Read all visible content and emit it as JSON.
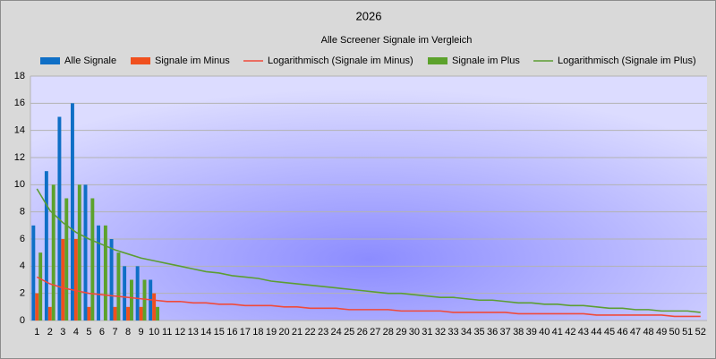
{
  "chart_data": {
    "type": "bar",
    "title": "2026",
    "subtitle": "Alle Screener Signale im Vergleich",
    "categories": [
      1,
      2,
      3,
      4,
      5,
      6,
      7,
      8,
      9,
      10,
      11,
      12,
      13,
      14,
      15,
      16,
      17,
      18,
      19,
      20,
      21,
      22,
      23,
      24,
      25,
      26,
      27,
      28,
      29,
      30,
      31,
      32,
      33,
      34,
      35,
      36,
      37,
      38,
      39,
      40,
      41,
      42,
      43,
      44,
      45,
      46,
      47,
      48,
      49,
      50,
      51,
      52
    ],
    "ylim": [
      0,
      18
    ],
    "yticks": [
      0,
      2,
      4,
      6,
      8,
      10,
      12,
      14,
      16,
      18
    ],
    "grid": true,
    "series": [
      {
        "name": "Alle Signale",
        "type": "bar",
        "color": "#0f6fc6",
        "values": [
          7,
          11,
          15,
          16,
          10,
          7,
          6,
          4,
          4,
          3,
          null,
          null,
          null,
          null,
          null,
          null,
          null,
          null,
          null,
          null,
          null,
          null,
          null,
          null,
          null,
          null,
          null,
          null,
          null,
          null,
          null,
          null,
          null,
          null,
          null,
          null,
          null,
          null,
          null,
          null,
          null,
          null,
          null,
          null,
          null,
          null,
          null,
          null,
          null,
          null,
          null,
          null
        ]
      },
      {
        "name": "Signale im Minus",
        "type": "bar",
        "color": "#f0501e",
        "values": [
          2,
          1,
          6,
          6,
          1,
          0,
          1,
          1,
          1,
          2,
          null,
          null,
          null,
          null,
          null,
          null,
          null,
          null,
          null,
          null,
          null,
          null,
          null,
          null,
          null,
          null,
          null,
          null,
          null,
          null,
          null,
          null,
          null,
          null,
          null,
          null,
          null,
          null,
          null,
          null,
          null,
          null,
          null,
          null,
          null,
          null,
          null,
          null,
          null,
          null,
          null,
          null
        ]
      },
      {
        "name": "Logarithmisch (Signale im Minus)",
        "type": "line",
        "color": "#f04a3a",
        "values": [
          3.2,
          2.7,
          2.4,
          2.2,
          2.0,
          1.9,
          1.8,
          1.7,
          1.6,
          1.5,
          1.4,
          1.4,
          1.3,
          1.3,
          1.2,
          1.2,
          1.1,
          1.1,
          1.1,
          1.0,
          1.0,
          0.9,
          0.9,
          0.9,
          0.8,
          0.8,
          0.8,
          0.8,
          0.7,
          0.7,
          0.7,
          0.7,
          0.6,
          0.6,
          0.6,
          0.6,
          0.6,
          0.5,
          0.5,
          0.5,
          0.5,
          0.5,
          0.5,
          0.4,
          0.4,
          0.4,
          0.4,
          0.4,
          0.4,
          0.3,
          0.3,
          0.3
        ]
      },
      {
        "name": "Signale im Plus",
        "type": "bar",
        "color": "#5ca22c",
        "values": [
          5,
          10,
          9,
          10,
          9,
          7,
          5,
          3,
          3,
          1,
          null,
          null,
          null,
          null,
          null,
          null,
          null,
          null,
          null,
          null,
          null,
          null,
          null,
          null,
          null,
          null,
          null,
          null,
          null,
          null,
          null,
          null,
          null,
          null,
          null,
          null,
          null,
          null,
          null,
          null,
          null,
          null,
          null,
          null,
          null,
          null,
          null,
          null,
          null,
          null,
          null,
          null
        ]
      },
      {
        "name": "Logarithmisch (Signale im Plus)",
        "type": "line",
        "color": "#5c9e32",
        "values": [
          9.7,
          8.1,
          7.2,
          6.5,
          6.0,
          5.6,
          5.2,
          4.9,
          4.6,
          4.4,
          4.2,
          4.0,
          3.8,
          3.6,
          3.5,
          3.3,
          3.2,
          3.1,
          2.9,
          2.8,
          2.7,
          2.6,
          2.5,
          2.4,
          2.3,
          2.2,
          2.1,
          2.0,
          2.0,
          1.9,
          1.8,
          1.7,
          1.7,
          1.6,
          1.5,
          1.5,
          1.4,
          1.3,
          1.3,
          1.2,
          1.2,
          1.1,
          1.1,
          1.0,
          0.9,
          0.9,
          0.8,
          0.8,
          0.7,
          0.7,
          0.7,
          0.6
        ]
      }
    ]
  }
}
